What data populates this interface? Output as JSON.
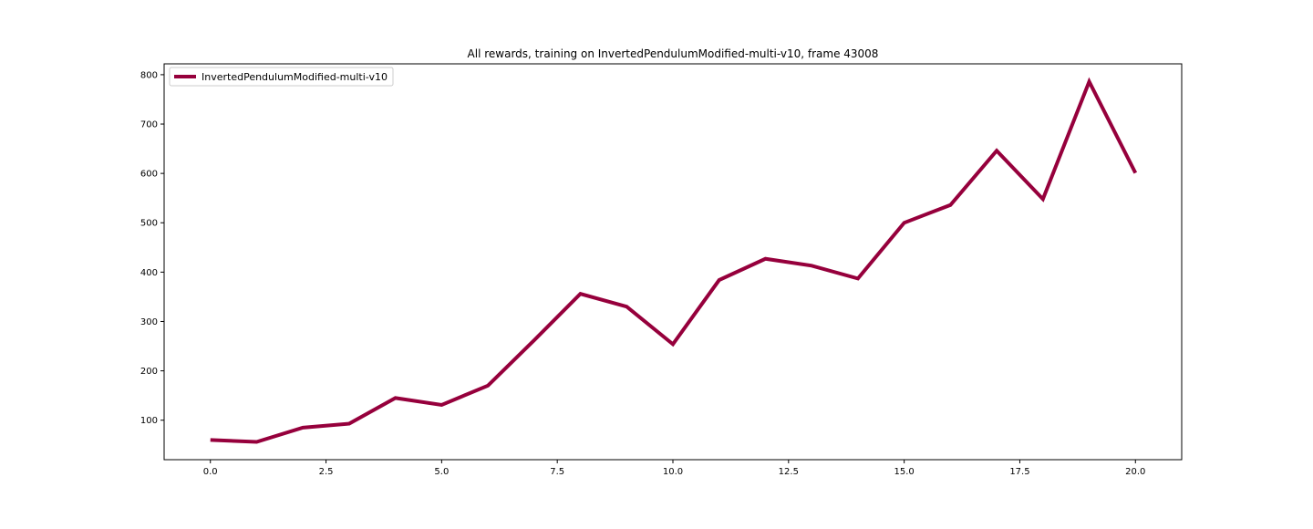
{
  "chart_data": {
    "type": "line",
    "title": "All rewards, training on InvertedPendulumModified-multi-v10, frame 43008",
    "xlabel": "",
    "ylabel": "",
    "x": [
      0,
      1,
      2,
      3,
      4,
      5,
      6,
      7,
      8,
      9,
      10,
      11,
      12,
      13,
      14,
      15,
      16,
      17,
      18,
      19,
      20
    ],
    "series": [
      {
        "name": "InvertedPendulumModified-multi-v10",
        "color": "#96003c",
        "values": [
          60,
          56,
          85,
          93,
          145,
          131,
          170,
          262,
          356,
          330,
          254,
          384,
          427,
          413,
          387,
          500,
          536,
          646,
          548,
          786,
          601
        ]
      }
    ],
    "xlim": [
      -1,
      21
    ],
    "ylim": [
      20,
      822
    ],
    "xticks": [
      0.0,
      2.5,
      5.0,
      7.5,
      10.0,
      12.5,
      15.0,
      17.5,
      20.0
    ],
    "xtick_labels": [
      "0.0",
      "2.5",
      "5.0",
      "7.5",
      "10.0",
      "12.5",
      "15.0",
      "17.5",
      "20.0"
    ],
    "yticks": [
      100,
      200,
      300,
      400,
      500,
      600,
      700,
      800
    ],
    "ytick_labels": [
      "100",
      "200",
      "300",
      "400",
      "500",
      "600",
      "700",
      "800"
    ],
    "grid": false,
    "legend_position": "top-left"
  }
}
